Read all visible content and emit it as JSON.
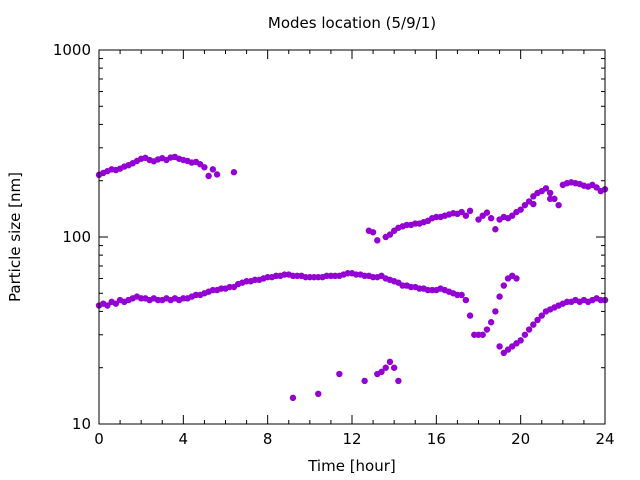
{
  "chart_data": {
    "type": "scatter",
    "title": "Modes location (5/9/1)",
    "xlabel": "Time [hour]",
    "ylabel": "Particle size [nm]",
    "xlim": [
      0,
      24
    ],
    "ylim": [
      10,
      1000
    ],
    "yscale": "log",
    "x_ticks": [
      0,
      4,
      8,
      12,
      16,
      20,
      24
    ],
    "x_tick_labels": [
      "0",
      "4",
      "8",
      "12",
      "16",
      "20",
      "24"
    ],
    "y_ticks": [
      10,
      100,
      1000
    ],
    "y_tick_labels": [
      "10",
      "100",
      "1000"
    ],
    "marker_color": "#9400d3",
    "grid": false,
    "series": [
      {
        "values_desc": "mode points",
        "points": [
          [
            0.0,
            215
          ],
          [
            0.2,
            220
          ],
          [
            0.4,
            225
          ],
          [
            0.6,
            230
          ],
          [
            0.8,
            228
          ],
          [
            1.0,
            232
          ],
          [
            1.2,
            238
          ],
          [
            1.4,
            242
          ],
          [
            1.6,
            248
          ],
          [
            1.8,
            255
          ],
          [
            2.0,
            262
          ],
          [
            2.2,
            265
          ],
          [
            2.4,
            258
          ],
          [
            2.6,
            254
          ],
          [
            2.8,
            260
          ],
          [
            3.0,
            264
          ],
          [
            3.2,
            258
          ],
          [
            3.4,
            266
          ],
          [
            3.6,
            268
          ],
          [
            3.8,
            262
          ],
          [
            4.0,
            258
          ],
          [
            4.2,
            255
          ],
          [
            4.4,
            250
          ],
          [
            4.6,
            252
          ],
          [
            4.8,
            245
          ],
          [
            5.0,
            236
          ],
          [
            5.2,
            212
          ],
          [
            5.4,
            230
          ],
          [
            5.6,
            216
          ],
          [
            6.4,
            222
          ],
          [
            0.0,
            43
          ],
          [
            0.2,
            44
          ],
          [
            0.4,
            43
          ],
          [
            0.6,
            45
          ],
          [
            0.8,
            44
          ],
          [
            1.0,
            46
          ],
          [
            1.2,
            45
          ],
          [
            1.4,
            46
          ],
          [
            1.6,
            47
          ],
          [
            1.8,
            48
          ],
          [
            2.0,
            47
          ],
          [
            2.2,
            47
          ],
          [
            2.4,
            46
          ],
          [
            2.6,
            47
          ],
          [
            2.8,
            46
          ],
          [
            3.0,
            46
          ],
          [
            3.2,
            47
          ],
          [
            3.4,
            46
          ],
          [
            3.6,
            47
          ],
          [
            3.8,
            46
          ],
          [
            4.0,
            47
          ],
          [
            4.2,
            47
          ],
          [
            4.4,
            48
          ],
          [
            4.6,
            49
          ],
          [
            4.8,
            49
          ],
          [
            5.0,
            50
          ],
          [
            5.2,
            51
          ],
          [
            5.4,
            52
          ],
          [
            5.6,
            52
          ],
          [
            5.8,
            53
          ],
          [
            6.0,
            53
          ],
          [
            6.2,
            54
          ],
          [
            6.4,
            54
          ],
          [
            6.6,
            56
          ],
          [
            6.8,
            57
          ],
          [
            7.0,
            58
          ],
          [
            7.2,
            58
          ],
          [
            7.4,
            59
          ],
          [
            7.6,
            59
          ],
          [
            7.8,
            60
          ],
          [
            8.0,
            61
          ],
          [
            8.2,
            61
          ],
          [
            8.4,
            62
          ],
          [
            8.6,
            62
          ],
          [
            8.8,
            63
          ],
          [
            9.0,
            63
          ],
          [
            9.2,
            62
          ],
          [
            9.4,
            62
          ],
          [
            9.6,
            62
          ],
          [
            9.8,
            61
          ],
          [
            10.0,
            61
          ],
          [
            10.2,
            61
          ],
          [
            10.4,
            61
          ],
          [
            10.6,
            61
          ],
          [
            10.8,
            62
          ],
          [
            11.0,
            62
          ],
          [
            11.2,
            62
          ],
          [
            11.4,
            62
          ],
          [
            11.6,
            63
          ],
          [
            11.8,
            64
          ],
          [
            12.0,
            64
          ],
          [
            12.2,
            63
          ],
          [
            12.4,
            63
          ],
          [
            12.6,
            62
          ],
          [
            12.8,
            62
          ],
          [
            13.0,
            61
          ],
          [
            13.2,
            61
          ],
          [
            13.4,
            62
          ],
          [
            13.6,
            60
          ],
          [
            13.8,
            59
          ],
          [
            14.0,
            58
          ],
          [
            14.2,
            57
          ],
          [
            14.4,
            55
          ],
          [
            14.6,
            55
          ],
          [
            14.8,
            54
          ],
          [
            15.0,
            54
          ],
          [
            15.2,
            53
          ],
          [
            15.4,
            53
          ],
          [
            15.6,
            52
          ],
          [
            15.8,
            52
          ],
          [
            16.0,
            52
          ],
          [
            16.2,
            53
          ],
          [
            16.4,
            52
          ],
          [
            16.6,
            51
          ],
          [
            16.8,
            50
          ],
          [
            17.0,
            49
          ],
          [
            17.2,
            49
          ],
          [
            17.4,
            46
          ],
          [
            17.6,
            38
          ],
          [
            17.8,
            30
          ],
          [
            18.0,
            30
          ],
          [
            18.2,
            30
          ],
          [
            18.4,
            32
          ],
          [
            18.6,
            35
          ],
          [
            18.8,
            40
          ],
          [
            19.0,
            48
          ],
          [
            19.2,
            55
          ],
          [
            19.4,
            60
          ],
          [
            19.6,
            62
          ],
          [
            19.8,
            60
          ],
          [
            19.0,
            26
          ],
          [
            19.2,
            24
          ],
          [
            19.4,
            25
          ],
          [
            19.6,
            26
          ],
          [
            19.8,
            27
          ],
          [
            20.0,
            28
          ],
          [
            20.2,
            30
          ],
          [
            20.4,
            32
          ],
          [
            20.6,
            34
          ],
          [
            20.8,
            36
          ],
          [
            21.0,
            38
          ],
          [
            21.2,
            40
          ],
          [
            21.4,
            41
          ],
          [
            21.6,
            42
          ],
          [
            21.8,
            43
          ],
          [
            22.0,
            44
          ],
          [
            22.2,
            45
          ],
          [
            22.4,
            45
          ],
          [
            22.6,
            46
          ],
          [
            22.8,
            45
          ],
          [
            23.0,
            46
          ],
          [
            23.2,
            45
          ],
          [
            23.4,
            46
          ],
          [
            23.6,
            47
          ],
          [
            23.8,
            46
          ],
          [
            24.0,
            46
          ],
          [
            12.8,
            108
          ],
          [
            13.0,
            106
          ],
          [
            13.2,
            96
          ],
          [
            13.6,
            100
          ],
          [
            13.8,
            103
          ],
          [
            14.0,
            108
          ],
          [
            14.2,
            112
          ],
          [
            14.4,
            114
          ],
          [
            14.6,
            116
          ],
          [
            14.8,
            116
          ],
          [
            15.0,
            118
          ],
          [
            15.2,
            118
          ],
          [
            15.4,
            120
          ],
          [
            15.6,
            122
          ],
          [
            15.8,
            126
          ],
          [
            16.0,
            128
          ],
          [
            16.2,
            128
          ],
          [
            16.4,
            130
          ],
          [
            16.6,
            132
          ],
          [
            16.8,
            134
          ],
          [
            17.0,
            133
          ],
          [
            17.2,
            136
          ],
          [
            17.4,
            130
          ],
          [
            17.6,
            138
          ],
          [
            18.0,
            124
          ],
          [
            18.2,
            130
          ],
          [
            18.4,
            135
          ],
          [
            18.6,
            126
          ],
          [
            18.8,
            110
          ],
          [
            19.0,
            124
          ],
          [
            19.2,
            128
          ],
          [
            19.4,
            126
          ],
          [
            19.6,
            130
          ],
          [
            19.8,
            136
          ],
          [
            20.0,
            140
          ],
          [
            20.2,
            148
          ],
          [
            20.4,
            155
          ],
          [
            20.6,
            165
          ],
          [
            20.8,
            172
          ],
          [
            21.0,
            176
          ],
          [
            21.2,
            182
          ],
          [
            21.4,
            172
          ],
          [
            21.6,
            160
          ],
          [
            21.8,
            148
          ],
          [
            22.0,
            190
          ],
          [
            22.2,
            194
          ],
          [
            22.4,
            196
          ],
          [
            22.6,
            194
          ],
          [
            22.8,
            192
          ],
          [
            23.0,
            188
          ],
          [
            23.2,
            186
          ],
          [
            23.4,
            190
          ],
          [
            23.6,
            184
          ],
          [
            23.8,
            176
          ],
          [
            24.0,
            180
          ],
          [
            20.6,
            150
          ],
          [
            21.4,
            160
          ],
          [
            9.2,
            13.8
          ],
          [
            10.4,
            14.5
          ],
          [
            11.4,
            18.5
          ],
          [
            12.6,
            17
          ],
          [
            13.2,
            18.5
          ],
          [
            13.4,
            19
          ],
          [
            13.6,
            20
          ],
          [
            13.8,
            21.5
          ],
          [
            14.0,
            20
          ],
          [
            14.2,
            17
          ]
        ]
      }
    ]
  }
}
